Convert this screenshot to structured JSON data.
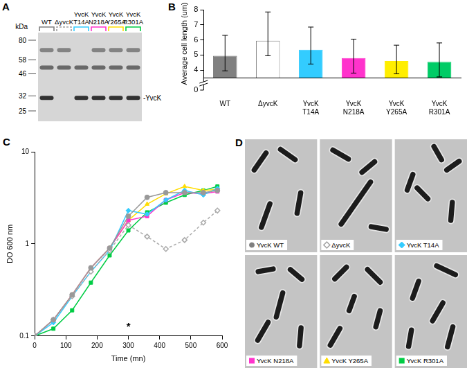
{
  "blot": {
    "panel": "A",
    "unit": "kDa",
    "markers": [
      80,
      58,
      46,
      32,
      25
    ],
    "lanes": [
      {
        "label": "WT",
        "color": "#808080",
        "line_style": "solid"
      },
      {
        "label": "ΔyvcK",
        "color": "#a0a0a0",
        "line_style": "dashed"
      },
      {
        "label": "YvcK T14A",
        "color": "#33ccff",
        "line_style": "solid"
      },
      {
        "label": "YvcK N218A",
        "color": "#ff33cc",
        "line_style": "solid"
      },
      {
        "label": "YvcK Y265A",
        "color": "#ffdd00",
        "line_style": "solid"
      },
      {
        "label": "YvcK R301A",
        "color": "#00cc44",
        "line_style": "solid"
      }
    ],
    "bands": [
      {
        "kda": 68,
        "lanes": [
          true,
          true,
          false,
          true,
          true,
          true
        ]
      },
      {
        "kda": 51,
        "lanes": [
          true,
          true,
          true,
          true,
          true,
          true
        ]
      },
      {
        "kda": 31,
        "label": "-YvcK",
        "lanes": [
          true,
          false,
          true,
          true,
          true,
          true
        ]
      }
    ]
  },
  "chart_data": [
    {
      "panel": "B",
      "type": "bar",
      "categories": [
        "WT",
        "ΔyvcK",
        "YvcK T14A",
        "YvcK N218A",
        "YvcK Y265A",
        "YvcK R301A"
      ],
      "values": [
        4.95,
        5.95,
        5.35,
        4.8,
        4.6,
        4.55
      ],
      "error_low": [
        3.95,
        4.95,
        4.4,
        3.8,
        3.75,
        3.55
      ],
      "error_high": [
        6.3,
        7.85,
        6.85,
        6.05,
        5.65,
        5.8
      ],
      "colors": [
        "#808080",
        "#ffffff",
        "#33ccff",
        "#ff33cc",
        "#ffee00",
        "#00cc66"
      ],
      "y_label": "Average cell length (um)",
      "ylim": [
        3.5,
        8
      ],
      "yticks": [
        4,
        5,
        6,
        7,
        8
      ],
      "y_break_from": 0,
      "grid": false
    },
    {
      "panel": "C",
      "type": "line",
      "log": "y",
      "x_label": "Time (mn)",
      "y_label": "DO 600 nm",
      "x": [
        0,
        60,
        120,
        180,
        240,
        300,
        360,
        420,
        480,
        540,
        585
      ],
      "xlim": [
        0,
        600
      ],
      "xticks": [
        0,
        100,
        200,
        300,
        400,
        500,
        600
      ],
      "ylim": [
        0.1,
        10
      ],
      "yticks": [
        0.1,
        1,
        10
      ],
      "grid": false,
      "annotations": [
        {
          "text": "*",
          "x": 300,
          "y": 0.125
        }
      ],
      "series": [
        {
          "name": "WT",
          "color": "#999999",
          "marker": "circle",
          "line_style": "solid",
          "values": [
            0.1,
            0.15,
            0.28,
            0.55,
            0.9,
            2.0,
            3.2,
            3.6,
            3.6,
            3.6,
            3.8
          ]
        },
        {
          "name": "ΔyvcK",
          "color": "#aaaaaa",
          "marker": "open_diamond",
          "line_style": "dashed",
          "values": [
            0.1,
            0.15,
            0.27,
            0.5,
            0.85,
            1.6,
            1.2,
            0.88,
            1.1,
            1.7,
            2.3
          ]
        },
        {
          "name": "YvcK T14A",
          "color": "#33ccff",
          "marker": "diamond",
          "line_style": "solid",
          "values": [
            0.1,
            0.14,
            0.27,
            0.5,
            0.85,
            2.3,
            2.1,
            3.0,
            3.8,
            3.4,
            4.0
          ]
        },
        {
          "name": "YvcK N218A",
          "color": "#ff33cc",
          "marker": "square",
          "line_style": "solid",
          "values": [
            0.1,
            0.15,
            0.28,
            0.55,
            0.9,
            1.8,
            2.0,
            3.0,
            3.6,
            3.5,
            3.7
          ]
        },
        {
          "name": "YvcK Y265A",
          "color": "#ffdd00",
          "marker": "triangle",
          "line_style": "solid",
          "values": [
            0.1,
            0.15,
            0.28,
            0.55,
            0.9,
            1.8,
            2.7,
            3.5,
            4.2,
            3.8,
            3.9
          ]
        },
        {
          "name": "YvcK R301A",
          "color": "#00cc44",
          "marker": "square",
          "line_style": "solid",
          "values": [
            0.1,
            0.12,
            0.19,
            0.38,
            0.75,
            1.4,
            2.2,
            2.8,
            3.4,
            3.8,
            4.2
          ]
        }
      ]
    }
  ],
  "micrographs": {
    "panel": "D",
    "images": [
      {
        "label": "YvcK WT",
        "marker": "circle",
        "color": "#808080"
      },
      {
        "label": "ΔyvcK",
        "marker": "open_diamond",
        "color": "#a0a0a0"
      },
      {
        "label": "YvcK T14A",
        "marker": "diamond",
        "color": "#33ccff"
      },
      {
        "label": "YvcK N218A",
        "marker": "square",
        "color": "#ff33cc"
      },
      {
        "label": "YvcK Y265A",
        "marker": "triangle",
        "color": "#ffdd00"
      },
      {
        "label": "YvcK R301A",
        "marker": "square",
        "color": "#00cc44"
      }
    ]
  }
}
